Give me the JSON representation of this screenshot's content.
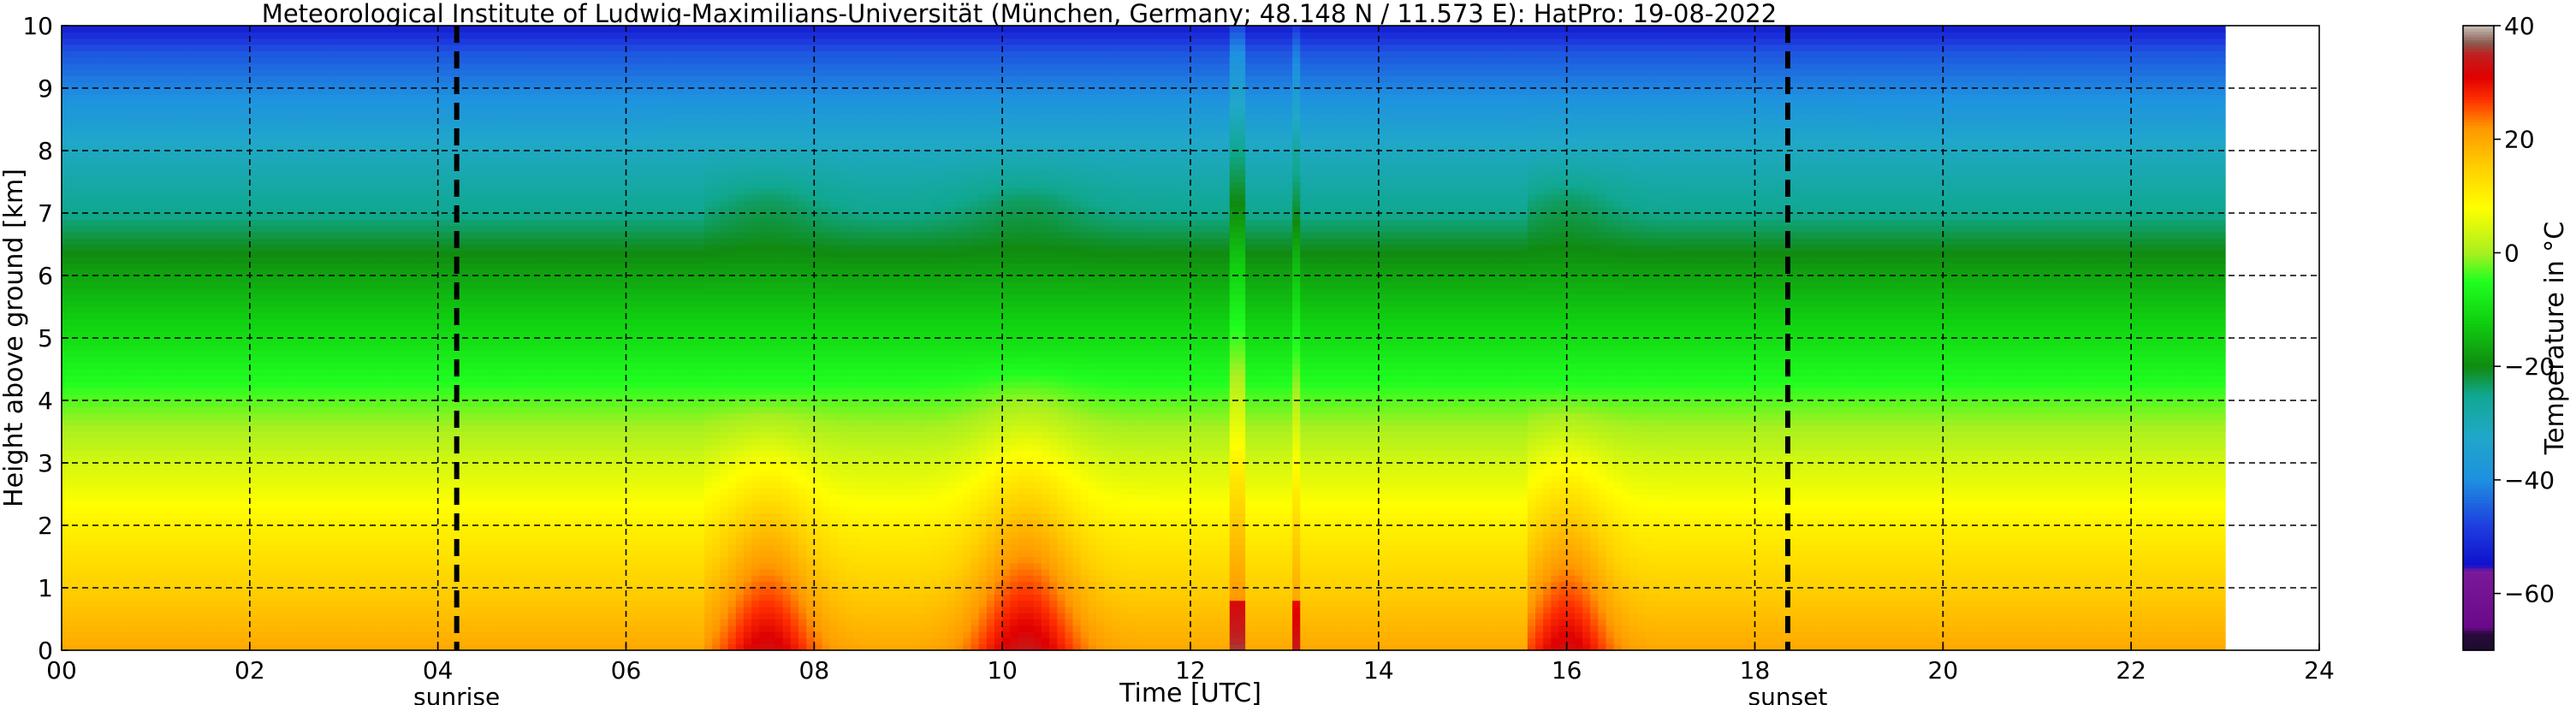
{
  "chart_data": {
    "type": "heatmap",
    "title": "Meteorological Institute of Ludwig-Maximilians-Universität (München, Germany; 48.148 N / 11.573 E):    HatPro: 19-08-2022",
    "xlabel": "Time [UTC]",
    "ylabel": "Height above ground [km]",
    "colorbar_label": "Temperature in $^\\circ$C",
    "xlim": [
      0,
      24
    ],
    "ylim": [
      0,
      10
    ],
    "data_x_range": [
      0,
      23
    ],
    "x_ticks": [
      {
        "value": 0,
        "label": "00"
      },
      {
        "value": 2,
        "label": "02"
      },
      {
        "value": 4,
        "label": "04"
      },
      {
        "value": 6,
        "label": "06"
      },
      {
        "value": 8,
        "label": "08"
      },
      {
        "value": 10,
        "label": "10"
      },
      {
        "value": 12,
        "label": "12"
      },
      {
        "value": 14,
        "label": "14"
      },
      {
        "value": 16,
        "label": "16"
      },
      {
        "value": 18,
        "label": "18"
      },
      {
        "value": 20,
        "label": "20"
      },
      {
        "value": 22,
        "label": "22"
      },
      {
        "value": 24,
        "label": "24"
      }
    ],
    "y_ticks": [
      {
        "value": 0,
        "label": "0"
      },
      {
        "value": 1,
        "label": "1"
      },
      {
        "value": 2,
        "label": "2"
      },
      {
        "value": 3,
        "label": "3"
      },
      {
        "value": 4,
        "label": "4"
      },
      {
        "value": 5,
        "label": "5"
      },
      {
        "value": 6,
        "label": "6"
      },
      {
        "value": 7,
        "label": "7"
      },
      {
        "value": 8,
        "label": "8"
      },
      {
        "value": 9,
        "label": "9"
      },
      {
        "value": 10,
        "label": "10"
      }
    ],
    "colorbar_range": [
      -70,
      40
    ],
    "colorbar_ticks": [
      {
        "value": 40,
        "label": "40"
      },
      {
        "value": 20,
        "label": "20"
      },
      {
        "value": 0,
        "label": "0"
      },
      {
        "value": -20,
        "label": "−20"
      },
      {
        "value": -40,
        "label": "−40"
      },
      {
        "value": -60,
        "label": "−60"
      }
    ],
    "colormap_stops": [
      {
        "t": -70,
        "color": "#1a0d2e"
      },
      {
        "t": -67,
        "color": "#2a0a3c"
      },
      {
        "t": -66,
        "color": "#6a0a8a"
      },
      {
        "t": -56,
        "color": "#7a1a9a"
      },
      {
        "t": -55,
        "color": "#1010cc"
      },
      {
        "t": -48,
        "color": "#1e3ee0"
      },
      {
        "t": -40,
        "color": "#1e90e0"
      },
      {
        "t": -32,
        "color": "#20a8c8"
      },
      {
        "t": -25,
        "color": "#10a890"
      },
      {
        "t": -20,
        "color": "#108a10"
      },
      {
        "t": -12,
        "color": "#10d010"
      },
      {
        "t": -5,
        "color": "#20ff20"
      },
      {
        "t": 0,
        "color": "#a8f020"
      },
      {
        "t": 8,
        "color": "#ffff00"
      },
      {
        "t": 15,
        "color": "#ffd000"
      },
      {
        "t": 22,
        "color": "#ff9800"
      },
      {
        "t": 27,
        "color": "#ff3000"
      },
      {
        "t": 31,
        "color": "#e00000"
      },
      {
        "t": 35,
        "color": "#c02020"
      },
      {
        "t": 37,
        "color": "#8a5a50"
      },
      {
        "t": 40,
        "color": "#c8c0b8"
      }
    ],
    "temperature_profile": [
      {
        "h": 0,
        "t": 20
      },
      {
        "h": 1,
        "t": 15
      },
      {
        "h": 2,
        "t": 10
      },
      {
        "h": 3,
        "t": 4
      },
      {
        "h": 4,
        "t": -3
      },
      {
        "h": 5,
        "t": -10
      },
      {
        "h": 6,
        "t": -17
      },
      {
        "h": 7,
        "t": -25
      },
      {
        "h": 8,
        "t": -31
      },
      {
        "h": 9,
        "t": -41
      },
      {
        "h": 9.6,
        "t": -46
      },
      {
        "h": 10,
        "t": -53
      }
    ],
    "warm_spots": [
      {
        "time": 7.5,
        "sigma_time": 0.5,
        "height_extent": 1.3,
        "amplitude": 13,
        "start": 6.8
      },
      {
        "time": 10.25,
        "sigma_time": 0.55,
        "height_extent": 1.5,
        "amplitude": 14,
        "start": null
      },
      {
        "time": 16.0,
        "sigma_time": 0.45,
        "height_extent": 1.3,
        "amplitude": 13,
        "start": 15.6
      }
    ],
    "column_artifacts": [
      {
        "time": 12.5,
        "width": 0.07,
        "offset": 6
      },
      {
        "time": 13.15,
        "width": 0.05,
        "offset": 4
      }
    ],
    "events": [
      {
        "label": "sunrise",
        "time": 4.2
      },
      {
        "label": "sunset",
        "time": 18.35
      }
    ]
  }
}
